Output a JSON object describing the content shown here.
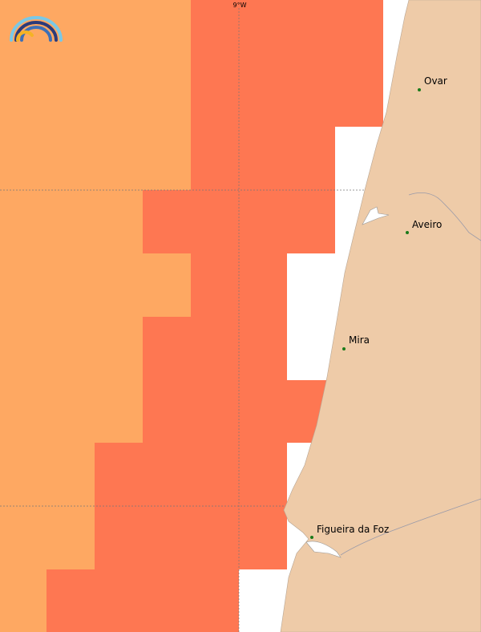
{
  "grid_label": "9°W",
  "places": [
    {
      "label": "Ovar"
    },
    {
      "label": "Aveiro"
    },
    {
      "label": "Mira"
    },
    {
      "label": "Figueira da Foz"
    }
  ]
}
